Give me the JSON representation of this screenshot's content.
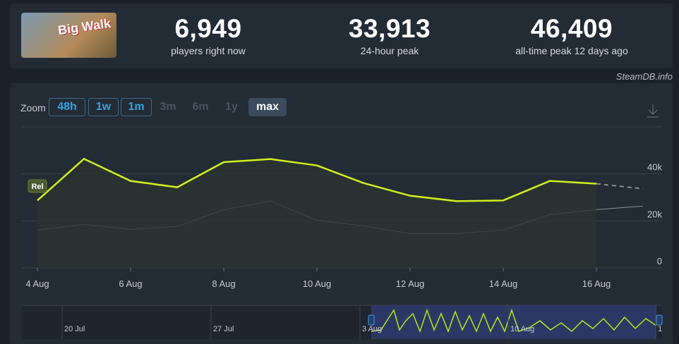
{
  "header": {
    "logo_text": "Big Walk",
    "stats": [
      {
        "value": "6,949",
        "label": "players right now"
      },
      {
        "value": "33,913",
        "label": "24-hour peak"
      },
      {
        "value": "46,409",
        "label": "all-time peak 12 days ago"
      }
    ],
    "credit": "SteamDB.info"
  },
  "zoom": {
    "label": "Zoom",
    "buttons": [
      "48h",
      "1w",
      "1m",
      "3m",
      "6m",
      "1y",
      "max"
    ]
  },
  "chart_data": {
    "type": "line",
    "categories": [
      "4 Aug",
      null,
      "6 Aug",
      null,
      "8 Aug",
      null,
      "10 Aug",
      null,
      "12 Aug",
      null,
      "14 Aug",
      null,
      "16 Aug",
      null
    ],
    "series": [
      {
        "color": "#d2ef1f",
        "values": [
          28700,
          46400,
          37000,
          34300,
          45000,
          46300,
          43600,
          36100,
          30700,
          28400,
          28700,
          37000,
          35800,
          33700
        ]
      },
      {
        "color": "#8a8f94",
        "values": [
          16100,
          18500,
          16400,
          17600,
          24800,
          28400,
          20300,
          17900,
          14600,
          14600,
          16100,
          22700,
          24800,
          26300
        ]
      }
    ],
    "ylim": [
      0,
      60000
    ],
    "yticks": [
      0,
      {
        "value": 20000,
        "label": "20k"
      },
      {
        "value": 40000,
        "label": "40k"
      }
    ],
    "grid": true,
    "flag": "Rel",
    "navigator_labels": [
      "20 Jul",
      "27 Jul",
      "3 Aug",
      "10 Aug",
      "1"
    ]
  }
}
